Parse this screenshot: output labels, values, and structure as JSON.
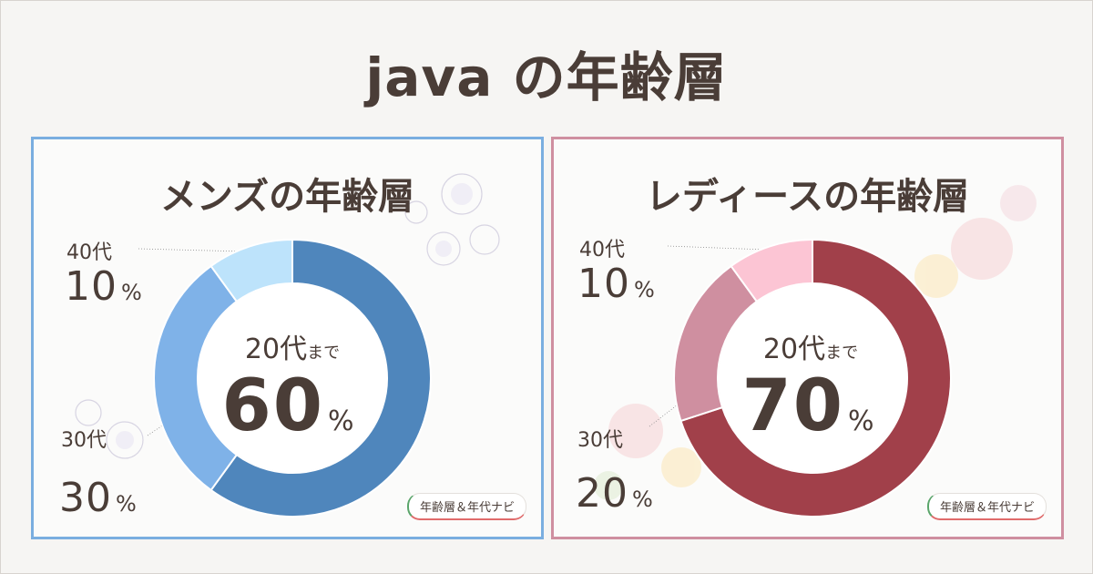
{
  "page_title": "java の年齢層",
  "badge": "年齢層＆年代ナビ",
  "colors": {
    "men_border": "#7aaee0",
    "women_border": "#cf8fa0",
    "men_20s": "#4f86bc",
    "men_30s": "#7fb2e8",
    "men_40s": "#bde3fb",
    "women_20s": "#a1404a",
    "women_30s": "#cf8fa0",
    "women_40s": "#fcc5d4"
  },
  "chart_data": [
    {
      "type": "pie",
      "title": "メンズの年齢層",
      "categories": [
        "20代まで",
        "30代",
        "40代"
      ],
      "values": [
        60,
        30,
        10
      ],
      "unit": "%",
      "center_label": {
        "text": "20代",
        "suffix": "まで",
        "value": "60",
        "unit": "%"
      },
      "labels": [
        {
          "age": "30代",
          "value": "30",
          "unit": "%"
        },
        {
          "age": "40代",
          "value": "10",
          "unit": "%"
        }
      ]
    },
    {
      "type": "pie",
      "title": "レディースの年齢層",
      "categories": [
        "20代まで",
        "30代",
        "40代"
      ],
      "values": [
        70,
        20,
        10
      ],
      "unit": "%",
      "center_label": {
        "text": "20代",
        "suffix": "まで",
        "value": "70",
        "unit": "%"
      },
      "labels": [
        {
          "age": "30代",
          "value": "20",
          "unit": "%"
        },
        {
          "age": "40代",
          "value": "10",
          "unit": "%"
        }
      ]
    }
  ]
}
